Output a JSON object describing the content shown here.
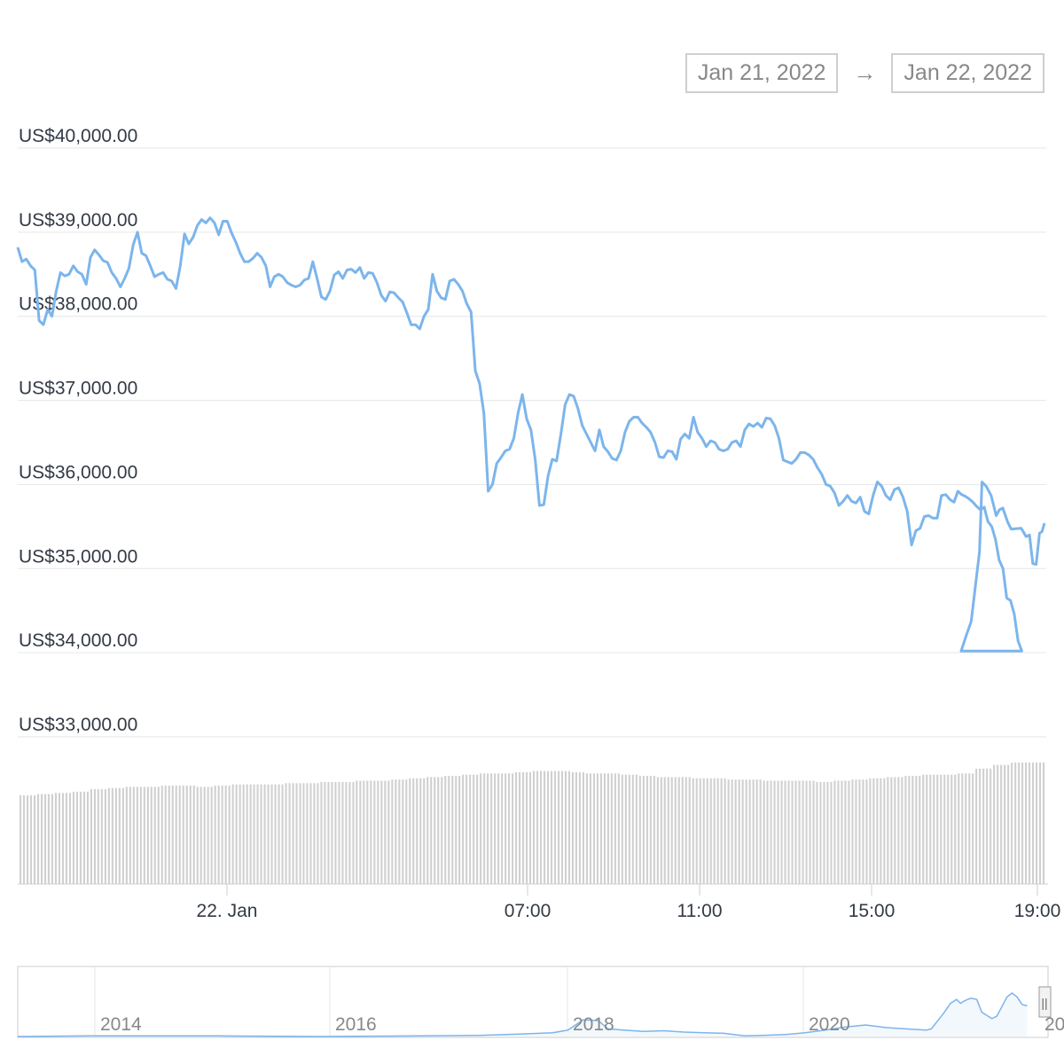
{
  "range": {
    "from": "Jan 21, 2022",
    "arrow": "→",
    "to": "Jan 22, 2022"
  },
  "colors": {
    "line": "#7cb5ec",
    "volume": "#cfcfcf",
    "grid": "#e6e6e6",
    "navigator_fill": "#f3f8fd"
  },
  "chart_data": {
    "type": "line",
    "y_ticks": [
      40000,
      39000,
      38000,
      37000,
      36000,
      35000,
      34000,
      33000
    ],
    "y_tick_labels": [
      "US$40,000.00",
      "US$39,000.00",
      "US$38,000.00",
      "US$37,000.00",
      "US$36,000.00",
      "US$35,000.00",
      "US$34,000.00",
      "US$33,000.00"
    ],
    "x_ticks": [
      "22. Jan",
      "07:00",
      "11:00",
      "15:00",
      "19:00"
    ],
    "x_tick_hours": [
      0,
      7,
      11,
      15,
      19
    ],
    "x_range_hours": [
      -4.85,
      19.2
    ],
    "ylim": [
      33000,
      40000
    ],
    "series": [
      {
        "values": [
          [
            -4.85,
            38820
          ],
          [
            -4.75,
            38650
          ],
          [
            -4.65,
            38680
          ],
          [
            -4.55,
            38600
          ],
          [
            -4.45,
            38550
          ],
          [
            -4.35,
            37950
          ],
          [
            -4.25,
            37900
          ],
          [
            -4.15,
            38080
          ],
          [
            -4.05,
            38000
          ],
          [
            -3.95,
            38300
          ],
          [
            -3.85,
            38520
          ],
          [
            -3.75,
            38480
          ],
          [
            -3.65,
            38500
          ],
          [
            -3.55,
            38600
          ],
          [
            -3.45,
            38530
          ],
          [
            -3.35,
            38500
          ],
          [
            -3.25,
            38380
          ],
          [
            -3.15,
            38700
          ],
          [
            -3.05,
            38790
          ],
          [
            -2.95,
            38730
          ],
          [
            -2.85,
            38660
          ],
          [
            -2.75,
            38640
          ],
          [
            -2.65,
            38520
          ],
          [
            -2.55,
            38450
          ],
          [
            -2.45,
            38350
          ],
          [
            -2.35,
            38450
          ],
          [
            -2.25,
            38570
          ],
          [
            -2.15,
            38850
          ],
          [
            -2.05,
            39000
          ],
          [
            -1.95,
            38750
          ],
          [
            -1.85,
            38720
          ],
          [
            -1.75,
            38600
          ],
          [
            -1.65,
            38470
          ],
          [
            -1.55,
            38500
          ],
          [
            -1.45,
            38520
          ],
          [
            -1.35,
            38440
          ],
          [
            -1.25,
            38420
          ],
          [
            -1.15,
            38330
          ],
          [
            -1.05,
            38600
          ],
          [
            -0.95,
            38980
          ],
          [
            -0.85,
            38860
          ],
          [
            -0.75,
            38940
          ],
          [
            -0.65,
            39080
          ],
          [
            -0.55,
            39150
          ],
          [
            -0.45,
            39110
          ],
          [
            -0.35,
            39170
          ],
          [
            -0.25,
            39110
          ],
          [
            -0.15,
            38970
          ],
          [
            -0.05,
            39130
          ],
          [
            0.05,
            39130
          ],
          [
            0.15,
            38990
          ],
          [
            0.25,
            38880
          ],
          [
            0.35,
            38750
          ],
          [
            0.45,
            38650
          ],
          [
            0.55,
            38650
          ],
          [
            0.65,
            38690
          ],
          [
            0.75,
            38750
          ],
          [
            0.85,
            38700
          ],
          [
            0.95,
            38600
          ],
          [
            1.05,
            38350
          ],
          [
            1.15,
            38470
          ],
          [
            1.25,
            38500
          ],
          [
            1.35,
            38470
          ],
          [
            1.45,
            38400
          ],
          [
            1.55,
            38370
          ],
          [
            1.65,
            38350
          ],
          [
            1.75,
            38370
          ],
          [
            1.85,
            38430
          ],
          [
            1.95,
            38450
          ],
          [
            2.05,
            38650
          ],
          [
            2.15,
            38450
          ],
          [
            2.25,
            38230
          ],
          [
            2.35,
            38200
          ],
          [
            2.45,
            38300
          ],
          [
            2.55,
            38490
          ],
          [
            2.65,
            38530
          ],
          [
            2.75,
            38450
          ],
          [
            2.85,
            38550
          ],
          [
            2.95,
            38560
          ],
          [
            3.05,
            38520
          ],
          [
            3.15,
            38580
          ],
          [
            3.25,
            38450
          ],
          [
            3.35,
            38520
          ],
          [
            3.45,
            38510
          ],
          [
            3.55,
            38400
          ],
          [
            3.65,
            38250
          ],
          [
            3.75,
            38180
          ],
          [
            3.85,
            38290
          ],
          [
            3.95,
            38280
          ],
          [
            4.05,
            38220
          ],
          [
            4.15,
            38170
          ],
          [
            4.25,
            38040
          ],
          [
            4.35,
            37900
          ],
          [
            4.45,
            37900
          ],
          [
            4.55,
            37850
          ],
          [
            4.65,
            38000
          ],
          [
            4.75,
            38080
          ],
          [
            4.85,
            38500
          ],
          [
            4.95,
            38300
          ],
          [
            5.05,
            38220
          ],
          [
            5.15,
            38200
          ],
          [
            5.25,
            38420
          ],
          [
            5.35,
            38440
          ],
          [
            5.45,
            38380
          ],
          [
            5.55,
            38300
          ],
          [
            5.65,
            38150
          ],
          [
            5.75,
            38050
          ],
          [
            5.85,
            37350
          ],
          [
            5.95,
            37200
          ],
          [
            6.05,
            36850
          ],
          [
            6.15,
            35920
          ],
          [
            6.25,
            36000
          ],
          [
            6.35,
            36250
          ],
          [
            6.45,
            36320
          ],
          [
            6.55,
            36400
          ],
          [
            6.65,
            36420
          ],
          [
            6.75,
            36550
          ],
          [
            6.85,
            36850
          ],
          [
            6.95,
            37070
          ],
          [
            7.05,
            36780
          ],
          [
            7.15,
            36650
          ],
          [
            7.25,
            36300
          ],
          [
            7.35,
            35750
          ],
          [
            7.45,
            35760
          ],
          [
            7.55,
            36100
          ],
          [
            7.65,
            36300
          ],
          [
            7.75,
            36280
          ],
          [
            7.85,
            36600
          ],
          [
            7.95,
            36950
          ],
          [
            8.05,
            37070
          ],
          [
            8.15,
            37050
          ],
          [
            8.25,
            36900
          ],
          [
            8.35,
            36700
          ],
          [
            8.45,
            36600
          ],
          [
            8.55,
            36500
          ],
          [
            8.65,
            36400
          ],
          [
            8.75,
            36650
          ],
          [
            8.85,
            36450
          ],
          [
            8.95,
            36390
          ],
          [
            9.05,
            36310
          ],
          [
            9.15,
            36290
          ],
          [
            9.25,
            36400
          ],
          [
            9.35,
            36620
          ],
          [
            9.45,
            36750
          ],
          [
            9.55,
            36800
          ],
          [
            9.65,
            36800
          ],
          [
            9.75,
            36730
          ],
          [
            9.85,
            36680
          ],
          [
            9.95,
            36620
          ],
          [
            10.05,
            36500
          ],
          [
            10.15,
            36330
          ],
          [
            10.25,
            36320
          ],
          [
            10.35,
            36400
          ],
          [
            10.45,
            36390
          ],
          [
            10.55,
            36300
          ],
          [
            10.65,
            36540
          ],
          [
            10.75,
            36600
          ],
          [
            10.85,
            36550
          ],
          [
            10.95,
            36800
          ],
          [
            11.05,
            36620
          ],
          [
            11.15,
            36550
          ],
          [
            11.25,
            36450
          ],
          [
            11.35,
            36520
          ],
          [
            11.45,
            36500
          ],
          [
            11.55,
            36420
          ],
          [
            11.65,
            36400
          ],
          [
            11.75,
            36420
          ],
          [
            11.85,
            36500
          ],
          [
            11.95,
            36520
          ],
          [
            12.05,
            36450
          ],
          [
            12.15,
            36650
          ],
          [
            12.25,
            36720
          ],
          [
            12.35,
            36690
          ],
          [
            12.45,
            36730
          ],
          [
            12.55,
            36680
          ],
          [
            12.65,
            36790
          ],
          [
            12.75,
            36780
          ],
          [
            12.85,
            36700
          ],
          [
            12.95,
            36550
          ],
          [
            13.05,
            36290
          ],
          [
            13.15,
            36270
          ],
          [
            13.25,
            36250
          ],
          [
            13.35,
            36300
          ],
          [
            13.45,
            36380
          ],
          [
            13.55,
            36380
          ]
        ]
      }
    ]
  },
  "volume": {
    "levels": [
      0.73,
      0.74,
      0.75,
      0.76,
      0.78,
      0.79,
      0.8,
      0.8,
      0.81,
      0.81,
      0.8,
      0.81,
      0.82,
      0.82,
      0.82,
      0.83,
      0.83,
      0.84,
      0.84,
      0.85,
      0.85,
      0.86,
      0.87,
      0.88,
      0.89,
      0.9,
      0.91,
      0.91,
      0.92,
      0.93,
      0.93,
      0.92,
      0.91,
      0.91,
      0.9,
      0.89,
      0.88,
      0.88,
      0.87,
      0.87,
      0.86,
      0.86,
      0.85,
      0.85,
      0.85,
      0.84,
      0.85,
      0.86,
      0.87,
      0.88,
      0.89,
      0.9,
      0.9,
      0.91,
      0.95,
      0.98,
      1.0,
      1.0
    ]
  },
  "navigator": {
    "labels": [
      "2014",
      "2016",
      "2018",
      "2020",
      "20"
    ],
    "handle": "||"
  }
}
